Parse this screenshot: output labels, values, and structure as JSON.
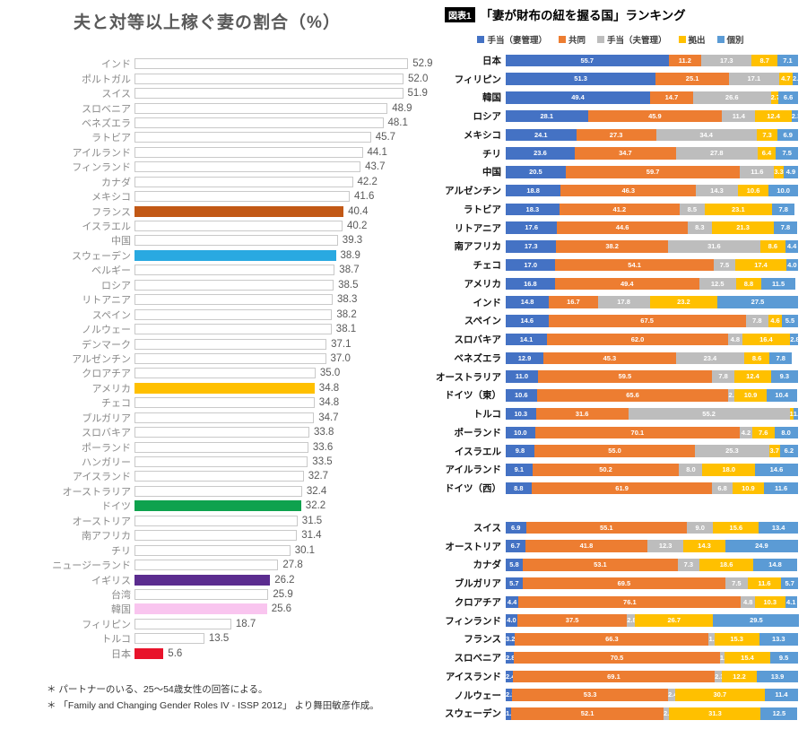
{
  "chart_data": [
    {
      "type": "bar",
      "orientation": "horizontal",
      "title": "夫と対等以上稼ぐ妻の割合（%）",
      "xlim": [
        0,
        55
      ],
      "grid": false,
      "value_labels": "outside-end",
      "categories": [
        "インド",
        "ポルトガル",
        "スイス",
        "スロベニア",
        "ベネズエラ",
        "ラトビア",
        "アイルランド",
        "フィンランド",
        "カナダ",
        "メキシコ",
        "フランス",
        "イスラエル",
        "中国",
        "スウェーデン",
        "ベルギー",
        "ロシア",
        "リトアニア",
        "スペイン",
        "ノルウェー",
        "デンマーク",
        "アルゼンチン",
        "クロアチア",
        "アメリカ",
        "チェコ",
        "ブルガリア",
        "スロバキア",
        "ポーランド",
        "ハンガリー",
        "アイスランド",
        "オーストラリア",
        "ドイツ",
        "オーストリア",
        "南アフリカ",
        "チリ",
        "ニュージーランド",
        "イギリス",
        "台湾",
        "韓国",
        "フィリピン",
        "トルコ",
        "日本"
      ],
      "values": [
        52.9,
        52.0,
        51.9,
        48.9,
        48.1,
        45.7,
        44.1,
        43.7,
        42.2,
        41.6,
        40.4,
        40.2,
        39.3,
        38.9,
        38.7,
        38.5,
        38.3,
        38.2,
        38.1,
        37.1,
        37.0,
        35.0,
        34.8,
        34.8,
        34.7,
        33.8,
        33.6,
        33.5,
        32.7,
        32.4,
        32.2,
        31.5,
        31.4,
        30.1,
        27.8,
        26.2,
        25.9,
        25.6,
        18.7,
        13.5,
        5.6
      ],
      "default_bar": {
        "fill": "#ffffff",
        "border": "#c9c9c9"
      },
      "bar_colors": {
        "フランス": "#c25815",
        "スウェーデン": "#29a9e1",
        "アメリカ": "#ffc000",
        "ドイツ": "#0ea24e",
        "イギリス": "#5b2c8f",
        "韓国": "#f9c5ef",
        "日本": "#e8132b"
      },
      "footnotes": [
        "＊ パートナーのいる、25～54歳女性の回答による。",
        "＊ 「Family and Changing Gender Roles IV - ISSP 2012」 より舞田敏彦作成。"
      ]
    },
    {
      "type": "bar",
      "stacked": true,
      "orientation": "horizontal",
      "badge": "図表1",
      "title": "「妻が財布の紐を握る国」ランキング",
      "xlim": [
        0,
        100
      ],
      "legend_position": "top",
      "value_labels": "inside-center",
      "gap_before_category": "スイス",
      "categories": [
        "日本",
        "フィリピン",
        "韓国",
        "ロシア",
        "メキシコ",
        "チリ",
        "中国",
        "アルゼンチン",
        "ラトビア",
        "リトアニア",
        "南アフリカ",
        "チェコ",
        "アメリカ",
        "インド",
        "スペイン",
        "スロバキア",
        "ベネズエラ",
        "オーストラリア",
        "ドイツ（東）",
        "トルコ",
        "ポーランド",
        "イスラエル",
        "アイルランド",
        "ドイツ（西）",
        "スイス",
        "オーストリア",
        "カナダ",
        "ブルガリア",
        "クロアチア",
        "フィンランド",
        "フランス",
        "スロベニア",
        "アイスランド",
        "ノルウェー",
        "スウェーデン"
      ],
      "series": [
        {
          "name": "手当（妻管理）",
          "color": "#4472c4",
          "values": [
            55.7,
            51.3,
            49.4,
            28.1,
            24.1,
            23.6,
            20.5,
            18.8,
            18.3,
            17.6,
            17.3,
            17.0,
            16.8,
            14.8,
            14.6,
            14.1,
            12.9,
            11.0,
            10.6,
            10.3,
            10.0,
            9.8,
            9.1,
            8.8,
            6.9,
            6.7,
            5.8,
            5.7,
            4.4,
            4.0,
            3.2,
            2.8,
            2.4,
            2.2,
            1.9
          ]
        },
        {
          "name": "共同",
          "color": "#ed7d31",
          "values": [
            11.2,
            25.1,
            14.7,
            45.9,
            27.3,
            34.7,
            59.7,
            46.3,
            41.2,
            44.6,
            38.2,
            54.1,
            49.4,
            16.7,
            67.5,
            62.0,
            45.3,
            59.5,
            65.6,
            31.6,
            70.1,
            55.0,
            50.2,
            61.9,
            55.1,
            41.8,
            53.1,
            69.5,
            76.1,
            37.5,
            66.3,
            70.5,
            69.1,
            53.3,
            52.1
          ]
        },
        {
          "name": "手当（夫管理）",
          "color": "#bdbdbd",
          "values": [
            17.3,
            17.1,
            26.6,
            11.4,
            34.4,
            27.8,
            11.6,
            14.3,
            8.5,
            8.3,
            31.6,
            7.5,
            12.5,
            17.8,
            7.8,
            4.8,
            23.4,
            7.8,
            2.1,
            55.2,
            4.2,
            25.3,
            8.0,
            6.8,
            9.0,
            12.3,
            7.3,
            7.5,
            4.8,
            2.8,
            1.9,
            1.7,
            2.3,
            2.4,
            2.0
          ]
        },
        {
          "name": "拠出",
          "color": "#ffc000",
          "values": [
            8.7,
            4.7,
            2.7,
            12.4,
            7.3,
            6.4,
            3.3,
            10.6,
            23.1,
            21.3,
            8.6,
            17.4,
            8.8,
            23.2,
            4.6,
            16.4,
            8.6,
            12.4,
            10.9,
            1.3,
            7.6,
            3.7,
            18.0,
            10.9,
            15.6,
            14.3,
            18.6,
            11.6,
            10.3,
            26.7,
            15.3,
            15.4,
            12.2,
            30.7,
            31.3
          ]
        },
        {
          "name": "個別",
          "color": "#5b9bd5",
          "values": [
            7.1,
            2.0,
            6.6,
            2.3,
            6.9,
            7.5,
            4.9,
            10.0,
            7.8,
            7.8,
            4.4,
            4.0,
            11.5,
            27.5,
            5.5,
            2.8,
            7.8,
            9.3,
            10.4,
            1.6,
            8.0,
            6.2,
            14.6,
            11.6,
            13.4,
            24.9,
            14.8,
            5.7,
            4.1,
            29.5,
            13.3,
            9.5,
            13.9,
            11.4,
            12.5
          ]
        }
      ]
    }
  ]
}
